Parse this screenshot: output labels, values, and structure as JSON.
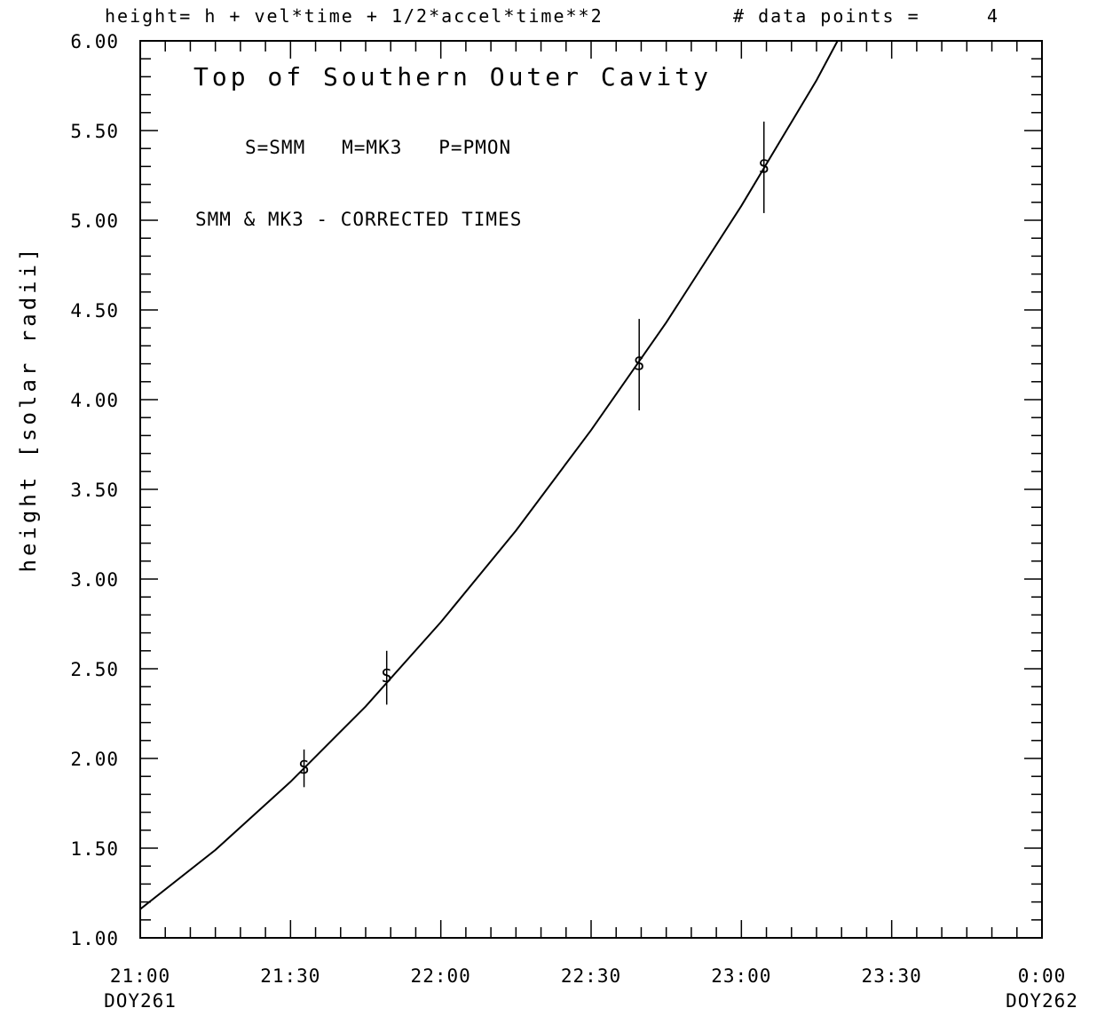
{
  "header": {
    "equation": "height= h + vel*time + 1/2*accel*time**2",
    "data_points_label": "# data points =",
    "data_points_value": "4"
  },
  "chart_data": {
    "type": "scatter",
    "title": "Top of Southern Outer Cavity",
    "annotations": [
      "S=SMM   M=MK3   P=PMON",
      "SMM & MK3 - CORRECTED TIMES"
    ],
    "xlabel": "",
    "ylabel": "height [solar radii]",
    "x_unit": "hours",
    "xlim": [
      21.0,
      24.0
    ],
    "ylim": [
      1.0,
      6.0
    ],
    "x_ticks": [
      {
        "value": 21.0,
        "label": "21:00",
        "sublabel": "DOY261"
      },
      {
        "value": 21.5,
        "label": "21:30",
        "sublabel": ""
      },
      {
        "value": 22.0,
        "label": "22:00",
        "sublabel": ""
      },
      {
        "value": 22.5,
        "label": "22:30",
        "sublabel": ""
      },
      {
        "value": 23.0,
        "label": "23:00",
        "sublabel": ""
      },
      {
        "value": 23.5,
        "label": "23:30",
        "sublabel": ""
      },
      {
        "value": 24.0,
        "label": "0:00",
        "sublabel": "DOY262"
      }
    ],
    "y_ticks": [
      {
        "value": 1.0,
        "label": "1.00"
      },
      {
        "value": 1.5,
        "label": "1.50"
      },
      {
        "value": 2.0,
        "label": "2.00"
      },
      {
        "value": 2.5,
        "label": "2.50"
      },
      {
        "value": 3.0,
        "label": "3.00"
      },
      {
        "value": 3.5,
        "label": "3.50"
      },
      {
        "value": 4.0,
        "label": "4.00"
      },
      {
        "value": 4.5,
        "label": "4.50"
      },
      {
        "value": 5.0,
        "label": "5.00"
      },
      {
        "value": 5.5,
        "label": "5.50"
      },
      {
        "value": 6.0,
        "label": "6.00"
      }
    ],
    "points": [
      {
        "x": 21.545,
        "y": 1.95,
        "y_low": 1.84,
        "y_high": 2.05,
        "marker": "S"
      },
      {
        "x": 21.82,
        "y": 2.46,
        "y_low": 2.3,
        "y_high": 2.6,
        "marker": "S"
      },
      {
        "x": 22.66,
        "y": 4.2,
        "y_low": 3.94,
        "y_high": 4.45,
        "marker": "S"
      },
      {
        "x": 23.075,
        "y": 5.3,
        "y_low": 5.04,
        "y_high": 5.55,
        "marker": "S"
      }
    ],
    "fit_curve": {
      "model": "quadratic",
      "x": [
        21.0,
        21.25,
        21.5,
        21.75,
        22.0,
        22.25,
        22.5,
        22.75,
        23.0,
        23.25,
        23.32
      ],
      "y": [
        1.16,
        1.49,
        1.87,
        2.29,
        2.76,
        3.27,
        3.83,
        4.43,
        5.08,
        5.78,
        6.0
      ]
    },
    "grid": false
  }
}
